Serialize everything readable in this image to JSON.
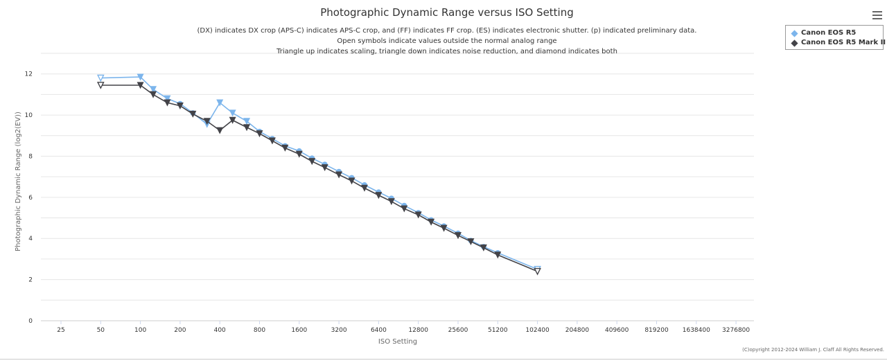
{
  "chart_data": {
    "type": "line",
    "title": "Photographic Dynamic Range versus ISO Setting",
    "subtitle": [
      "(DX) indicates DX crop (APS-C) indicates APS-C crop, and (FF) indicates FF crop. (ES) indicates electronic shutter. (p) indicated preliminary data.",
      "Open symbols indicate values outside the normal analog range",
      "Triangle up indicates scaling, triangle down indicates noise reduction, and diamond indicates both"
    ],
    "xlabel": "ISO Setting",
    "ylabel": "Photographic Dynamic Range (log2(EV))",
    "x_scale": "log2",
    "x_ticks": [
      25,
      50,
      100,
      200,
      400,
      800,
      1600,
      3200,
      6400,
      12800,
      25600,
      51200,
      102400,
      204800,
      409600,
      819200,
      1638400,
      3276800
    ],
    "ylim": [
      0,
      13
    ],
    "y_ticks": [
      0,
      2,
      4,
      6,
      8,
      10,
      12
    ],
    "grid": true,
    "legend_position": "top-right",
    "series": [
      {
        "name": "Canon EOS R5",
        "color": "#7cb5ec",
        "points": [
          {
            "x": 50,
            "y": 11.8,
            "marker": "triangle-down-open"
          },
          {
            "x": 100,
            "y": 11.85,
            "marker": "triangle-down"
          },
          {
            "x": 125,
            "y": 11.25,
            "marker": "triangle-down"
          },
          {
            "x": 160,
            "y": 10.8,
            "marker": "triangle-down"
          },
          {
            "x": 200,
            "y": 10.55,
            "marker": "circle"
          },
          {
            "x": 250,
            "y": 10.1,
            "marker": "circle"
          },
          {
            "x": 320,
            "y": 9.55,
            "marker": "triangle-down"
          },
          {
            "x": 400,
            "y": 10.6,
            "marker": "triangle-down"
          },
          {
            "x": 500,
            "y": 10.1,
            "marker": "triangle-down"
          },
          {
            "x": 640,
            "y": 9.7,
            "marker": "triangle-down"
          },
          {
            "x": 800,
            "y": 9.2,
            "marker": "circle"
          },
          {
            "x": 1000,
            "y": 8.85,
            "marker": "circle"
          },
          {
            "x": 1250,
            "y": 8.5,
            "marker": "circle"
          },
          {
            "x": 1600,
            "y": 8.25,
            "marker": "circle"
          },
          {
            "x": 2000,
            "y": 7.9,
            "marker": "circle"
          },
          {
            "x": 2500,
            "y": 7.6,
            "marker": "circle"
          },
          {
            "x": 3200,
            "y": 7.25,
            "marker": "circle"
          },
          {
            "x": 4000,
            "y": 6.95,
            "marker": "circle"
          },
          {
            "x": 5000,
            "y": 6.6,
            "marker": "circle"
          },
          {
            "x": 6400,
            "y": 6.25,
            "marker": "circle"
          },
          {
            "x": 8000,
            "y": 5.95,
            "marker": "circle"
          },
          {
            "x": 10000,
            "y": 5.6,
            "marker": "circle"
          },
          {
            "x": 12800,
            "y": 5.25,
            "marker": "circle"
          },
          {
            "x": 16000,
            "y": 4.9,
            "marker": "circle"
          },
          {
            "x": 20000,
            "y": 4.6,
            "marker": "circle"
          },
          {
            "x": 25600,
            "y": 4.25,
            "marker": "circle"
          },
          {
            "x": 32000,
            "y": 3.9,
            "marker": "circle"
          },
          {
            "x": 40000,
            "y": 3.6,
            "marker": "circle"
          },
          {
            "x": 51200,
            "y": 3.3,
            "marker": "circle"
          },
          {
            "x": 102400,
            "y": 2.5,
            "marker": "triangle-down-open"
          }
        ]
      },
      {
        "name": "Canon EOS R5 Mark II",
        "color": "#434348",
        "points": [
          {
            "x": 50,
            "y": 11.45,
            "marker": "triangle-down-open"
          },
          {
            "x": 100,
            "y": 11.45,
            "marker": "triangle-down"
          },
          {
            "x": 125,
            "y": 11.0,
            "marker": "triangle-down"
          },
          {
            "x": 160,
            "y": 10.6,
            "marker": "triangle-down"
          },
          {
            "x": 200,
            "y": 10.45,
            "marker": "triangle-down"
          },
          {
            "x": 250,
            "y": 10.05,
            "marker": "triangle-down"
          },
          {
            "x": 320,
            "y": 9.7,
            "marker": "triangle-down"
          },
          {
            "x": 400,
            "y": 9.25,
            "marker": "triangle-down"
          },
          {
            "x": 500,
            "y": 9.75,
            "marker": "triangle-down"
          },
          {
            "x": 640,
            "y": 9.4,
            "marker": "triangle-down"
          },
          {
            "x": 800,
            "y": 9.1,
            "marker": "triangle-down"
          },
          {
            "x": 1000,
            "y": 8.75,
            "marker": "triangle-down"
          },
          {
            "x": 1250,
            "y": 8.4,
            "marker": "triangle-down"
          },
          {
            "x": 1600,
            "y": 8.1,
            "marker": "triangle-down"
          },
          {
            "x": 2000,
            "y": 7.75,
            "marker": "triangle-down"
          },
          {
            "x": 2500,
            "y": 7.45,
            "marker": "triangle-down"
          },
          {
            "x": 3200,
            "y": 7.1,
            "marker": "triangle-down"
          },
          {
            "x": 4000,
            "y": 6.8,
            "marker": "triangle-down"
          },
          {
            "x": 5000,
            "y": 6.45,
            "marker": "triangle-down"
          },
          {
            "x": 6400,
            "y": 6.1,
            "marker": "triangle-down"
          },
          {
            "x": 8000,
            "y": 5.8,
            "marker": "triangle-down"
          },
          {
            "x": 10000,
            "y": 5.45,
            "marker": "triangle-down"
          },
          {
            "x": 12800,
            "y": 5.15,
            "marker": "triangle-down"
          },
          {
            "x": 16000,
            "y": 4.8,
            "marker": "triangle-down"
          },
          {
            "x": 20000,
            "y": 4.5,
            "marker": "triangle-down"
          },
          {
            "x": 25600,
            "y": 4.15,
            "marker": "triangle-down"
          },
          {
            "x": 32000,
            "y": 3.85,
            "marker": "triangle-down"
          },
          {
            "x": 40000,
            "y": 3.55,
            "marker": "triangle-down"
          },
          {
            "x": 51200,
            "y": 3.2,
            "marker": "triangle-down"
          },
          {
            "x": 102400,
            "y": 2.4,
            "marker": "triangle-down-open"
          }
        ]
      }
    ]
  },
  "legend": {
    "items": [
      {
        "label": "Canon EOS R5",
        "color": "#7cb5ec"
      },
      {
        "label": "Canon EOS R5 Mark II",
        "color": "#434348"
      }
    ]
  },
  "menu": {
    "icon": "hamburger-menu-icon"
  },
  "copyright": "(C)opyright 2012-2024 William J. Claff All Rights Reserved."
}
